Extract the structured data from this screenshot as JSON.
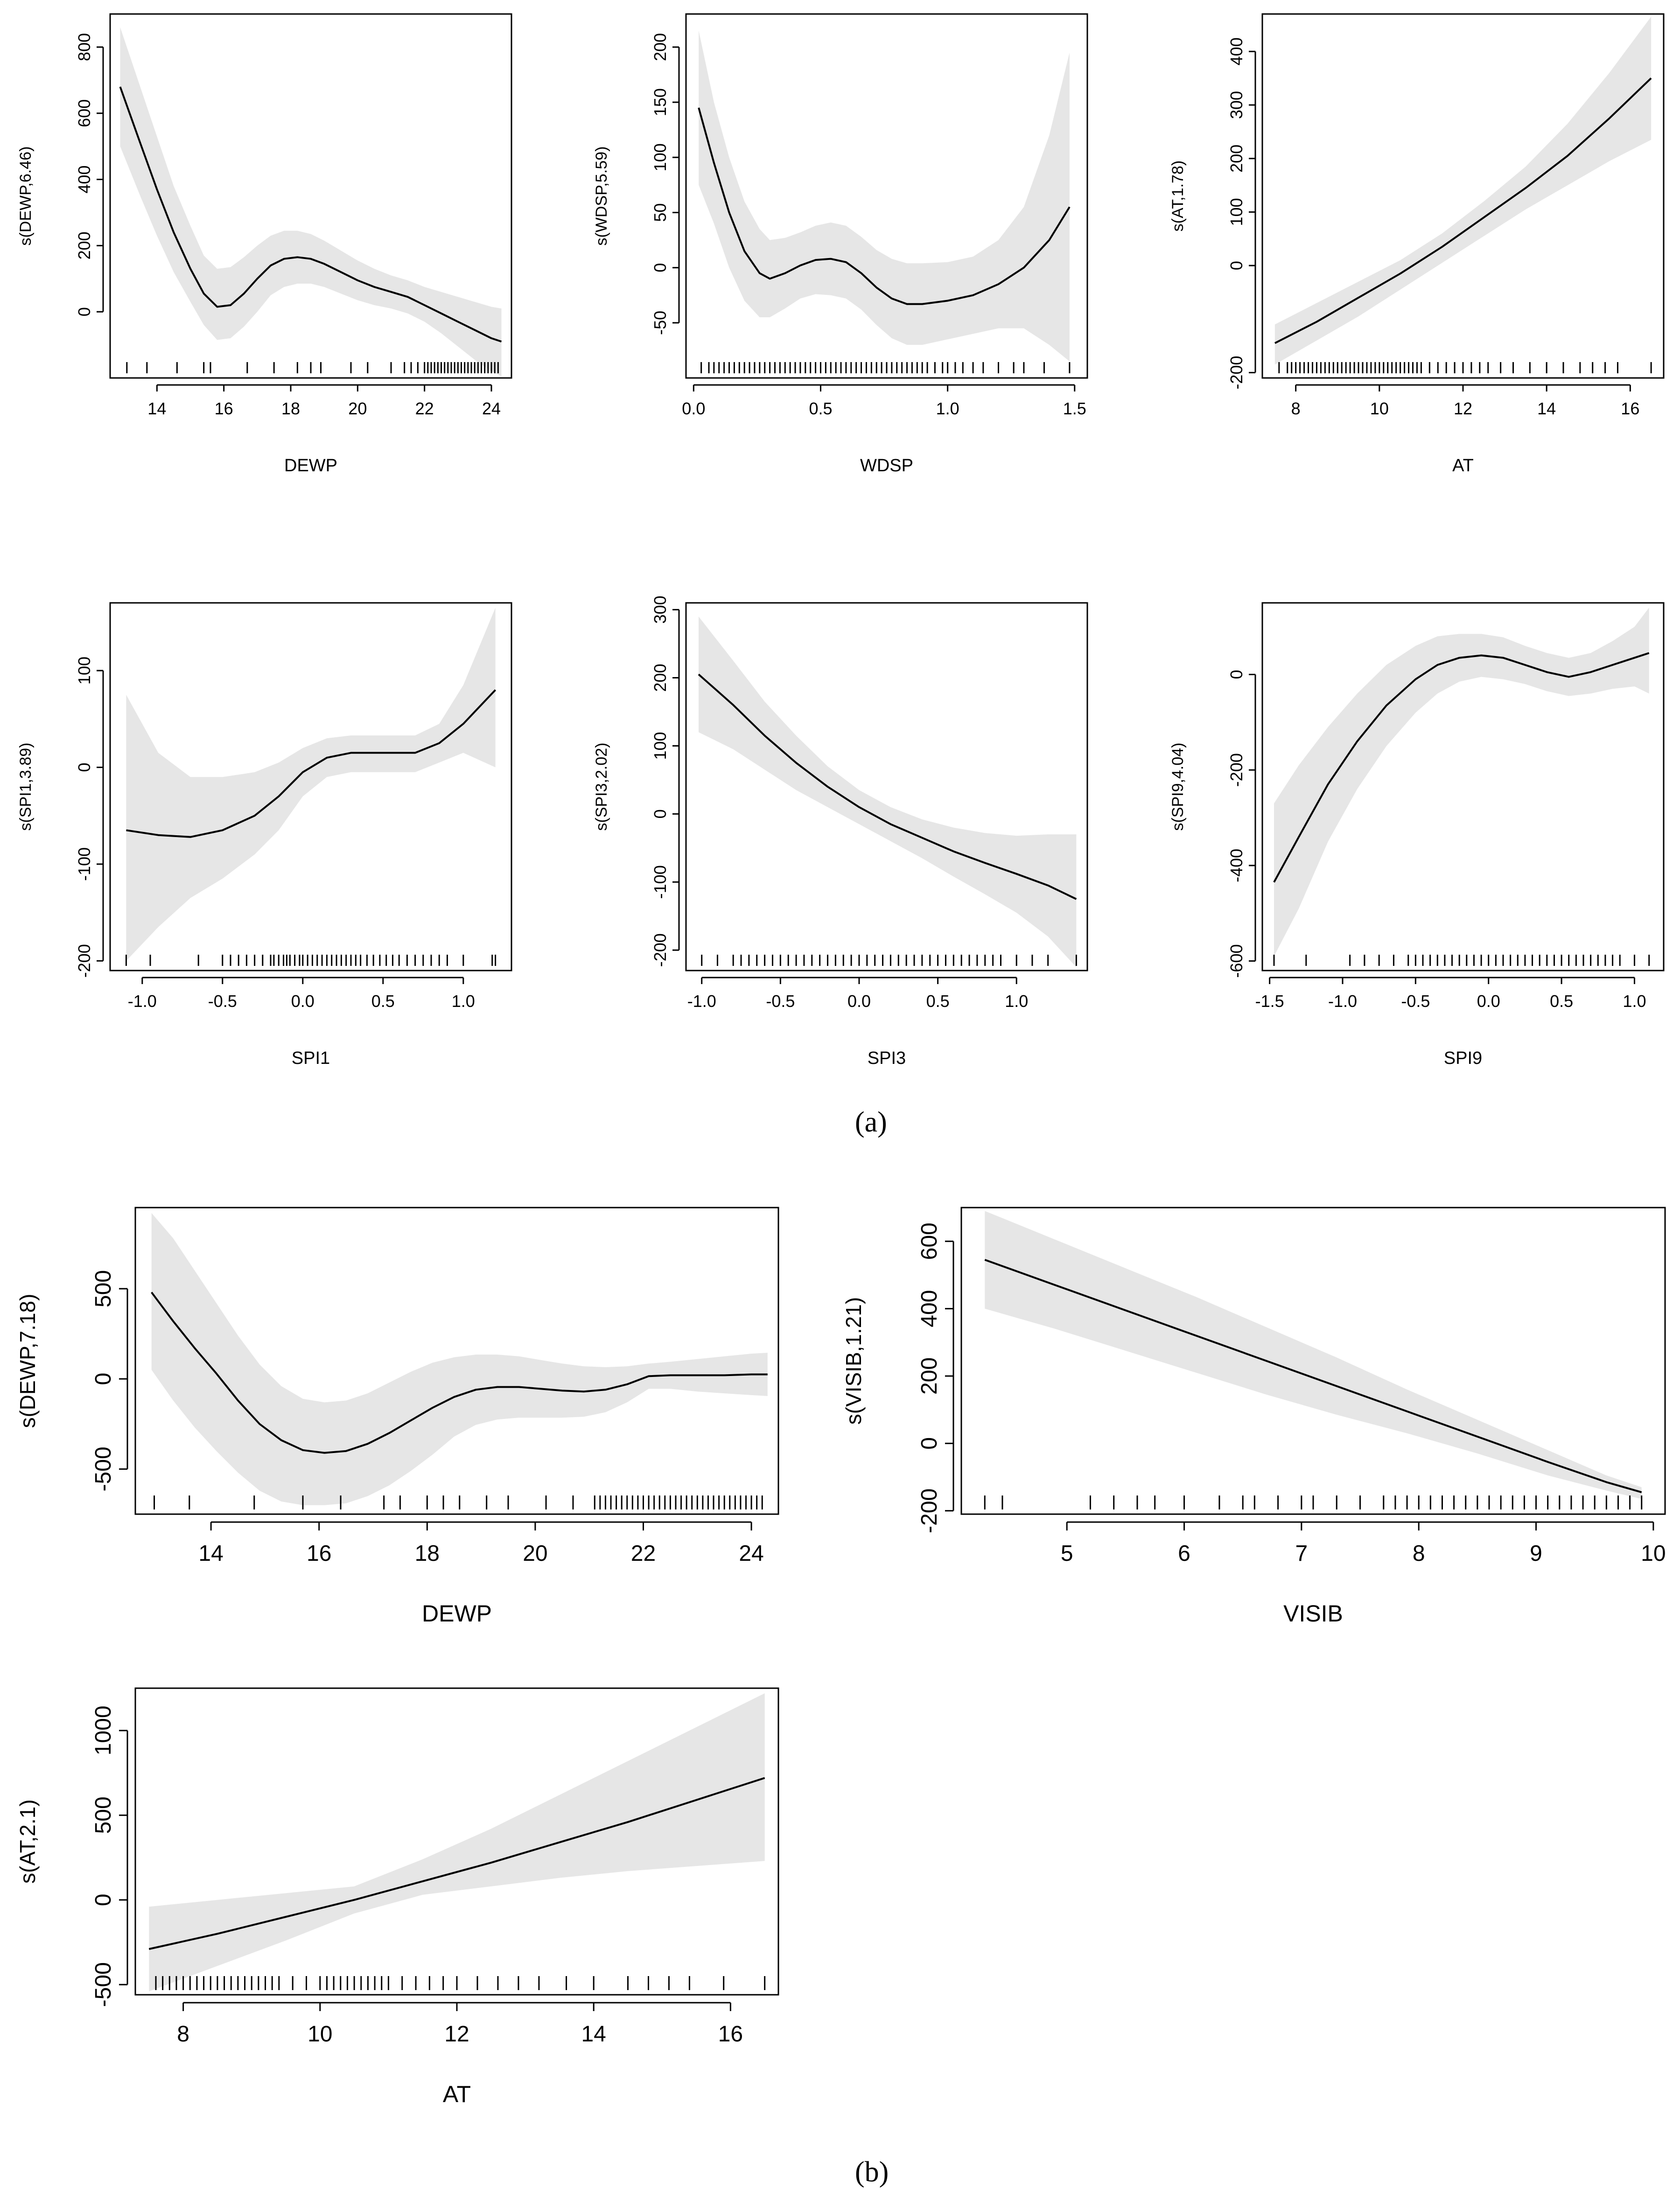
{
  "panel_labels": {
    "a": "(a)",
    "b": "(b)"
  },
  "chart_data": [
    {
      "type": "line",
      "section": "a",
      "xlabel": "DEWP",
      "ylabel": "s(DEWP,6.46)",
      "xlim": [
        12.6,
        24.6
      ],
      "ylim": [
        -200,
        900
      ],
      "xticks": [
        14,
        16,
        18,
        20,
        22,
        24
      ],
      "yticks": [
        0,
        200,
        400,
        600,
        800
      ],
      "x": [
        12.9,
        13.5,
        14.0,
        14.5,
        15.0,
        15.4,
        15.8,
        16.2,
        16.6,
        17.0,
        17.4,
        17.8,
        18.2,
        18.6,
        19.0,
        19.5,
        20.0,
        20.5,
        21.0,
        21.5,
        22.0,
        22.5,
        23.0,
        23.5,
        24.0,
        24.3
      ],
      "y": [
        680,
        510,
        370,
        240,
        130,
        55,
        15,
        20,
        55,
        100,
        140,
        160,
        165,
        160,
        145,
        120,
        95,
        75,
        60,
        45,
        20,
        -5,
        -30,
        -55,
        -80,
        -90
      ],
      "upper": [
        860,
        680,
        530,
        380,
        260,
        170,
        130,
        135,
        165,
        200,
        230,
        245,
        245,
        235,
        215,
        185,
        155,
        130,
        110,
        95,
        75,
        60,
        45,
        30,
        15,
        10
      ],
      "lower": [
        500,
        350,
        230,
        120,
        30,
        -40,
        -85,
        -80,
        -45,
        0,
        50,
        75,
        85,
        85,
        75,
        55,
        35,
        20,
        10,
        -5,
        -30,
        -65,
        -105,
        -145,
        -180,
        -195
      ],
      "rug": [
        13.1,
        13.7,
        14.6,
        15.4,
        15.6,
        16.7,
        17.5,
        18.2,
        18.6,
        18.9,
        19.8,
        20.3,
        21.0,
        21.4,
        21.6,
        21.8,
        22.0,
        22.1,
        22.2,
        22.3,
        22.4,
        22.5,
        22.6,
        22.7,
        22.8,
        22.9,
        23.0,
        23.1,
        23.2,
        23.3,
        23.4,
        23.5,
        23.6,
        23.7,
        23.8,
        23.9,
        24.0,
        24.1,
        24.2
      ]
    },
    {
      "type": "line",
      "section": "a",
      "xlabel": "WDSP",
      "ylabel": "s(WDSP,5.59)",
      "xlim": [
        -0.03,
        1.55
      ],
      "ylim": [
        -100,
        230
      ],
      "xticks": [
        0.0,
        0.5,
        1.0,
        1.5
      ],
      "yticks": [
        -50,
        0,
        50,
        100,
        150,
        200
      ],
      "x": [
        0.02,
        0.08,
        0.14,
        0.2,
        0.26,
        0.3,
        0.36,
        0.42,
        0.48,
        0.54,
        0.6,
        0.66,
        0.72,
        0.78,
        0.84,
        0.9,
        1.0,
        1.1,
        1.2,
        1.3,
        1.4,
        1.48
      ],
      "y": [
        145,
        95,
        50,
        15,
        -5,
        -10,
        -5,
        2,
        7,
        8,
        5,
        -5,
        -18,
        -28,
        -33,
        -33,
        -30,
        -25,
        -15,
        0,
        25,
        55
      ],
      "upper": [
        215,
        150,
        100,
        60,
        35,
        25,
        27,
        32,
        38,
        41,
        38,
        28,
        16,
        8,
        4,
        4,
        5,
        10,
        25,
        55,
        120,
        195
      ],
      "lower": [
        75,
        40,
        0,
        -30,
        -45,
        -45,
        -37,
        -28,
        -24,
        -25,
        -28,
        -38,
        -52,
        -64,
        -70,
        -70,
        -65,
        -60,
        -55,
        -55,
        -70,
        -85
      ],
      "rug": [
        0.03,
        0.06,
        0.08,
        0.1,
        0.12,
        0.14,
        0.16,
        0.18,
        0.2,
        0.22,
        0.24,
        0.26,
        0.28,
        0.3,
        0.32,
        0.34,
        0.36,
        0.38,
        0.4,
        0.42,
        0.44,
        0.46,
        0.48,
        0.5,
        0.52,
        0.54,
        0.56,
        0.58,
        0.6,
        0.62,
        0.64,
        0.66,
        0.68,
        0.7,
        0.72,
        0.74,
        0.76,
        0.78,
        0.8,
        0.82,
        0.84,
        0.86,
        0.88,
        0.9,
        0.92,
        0.95,
        0.98,
        1.0,
        1.03,
        1.06,
        1.1,
        1.14,
        1.2,
        1.26,
        1.3,
        1.38,
        1.48
      ]
    },
    {
      "type": "line",
      "section": "a",
      "xlabel": "AT",
      "ylabel": "s(AT,1.78)",
      "xlim": [
        7.2,
        16.8
      ],
      "ylim": [
        -210,
        470
      ],
      "xticks": [
        8,
        10,
        12,
        14,
        16
      ],
      "yticks": [
        -200,
        0,
        100,
        200,
        300,
        400
      ],
      "x": [
        7.5,
        8.5,
        9.5,
        10.5,
        11.5,
        12.5,
        13.5,
        14.5,
        15.5,
        16.5
      ],
      "y": [
        -145,
        -105,
        -60,
        -15,
        35,
        90,
        145,
        205,
        275,
        350
      ],
      "upper": [
        -110,
        -70,
        -30,
        10,
        60,
        120,
        185,
        265,
        360,
        465
      ],
      "lower": [
        -185,
        -140,
        -95,
        -45,
        5,
        55,
        105,
        150,
        195,
        235
      ],
      "rug": [
        7.6,
        7.8,
        7.9,
        8.0,
        8.1,
        8.2,
        8.3,
        8.4,
        8.5,
        8.6,
        8.7,
        8.8,
        8.9,
        9.0,
        9.1,
        9.2,
        9.3,
        9.4,
        9.5,
        9.6,
        9.7,
        9.8,
        9.9,
        10.0,
        10.1,
        10.2,
        10.3,
        10.4,
        10.5,
        10.6,
        10.7,
        10.8,
        10.9,
        11.0,
        11.2,
        11.4,
        11.6,
        11.8,
        12.0,
        12.2,
        12.4,
        12.6,
        12.9,
        13.2,
        13.6,
        14.0,
        14.4,
        14.8,
        15.1,
        15.4,
        15.7,
        16.5
      ]
    },
    {
      "type": "line",
      "section": "a",
      "xlabel": "SPI1",
      "ylabel": "s(SPI1,3.89)",
      "xlim": [
        -1.2,
        1.3
      ],
      "ylim": [
        -210,
        170
      ],
      "xticks": [
        -1.0,
        -0.5,
        0.0,
        0.5,
        1.0
      ],
      "yticks": [
        -200,
        -100,
        0,
        100
      ],
      "x": [
        -1.1,
        -0.9,
        -0.7,
        -0.5,
        -0.3,
        -0.15,
        0.0,
        0.15,
        0.3,
        0.5,
        0.7,
        0.85,
        1.0,
        1.2
      ],
      "y": [
        -65,
        -70,
        -72,
        -65,
        -50,
        -30,
        -5,
        10,
        15,
        15,
        15,
        25,
        45,
        80
      ],
      "upper": [
        75,
        15,
        -10,
        -10,
        -5,
        5,
        20,
        30,
        33,
        33,
        33,
        45,
        85,
        165
      ],
      "lower": [
        -200,
        -165,
        -135,
        -115,
        -90,
        -65,
        -30,
        -10,
        -5,
        -5,
        -5,
        5,
        15,
        0
      ],
      "rug": [
        -1.1,
        -0.95,
        -0.65,
        -0.5,
        -0.45,
        -0.4,
        -0.35,
        -0.3,
        -0.25,
        -0.2,
        -0.18,
        -0.15,
        -0.12,
        -0.1,
        -0.08,
        -0.05,
        -0.02,
        0.0,
        0.03,
        0.06,
        0.09,
        0.12,
        0.15,
        0.18,
        0.21,
        0.24,
        0.27,
        0.3,
        0.33,
        0.36,
        0.4,
        0.44,
        0.48,
        0.52,
        0.56,
        0.6,
        0.65,
        0.7,
        0.75,
        0.8,
        0.85,
        0.9,
        1.0,
        1.18,
        1.2
      ]
    },
    {
      "type": "line",
      "section": "a",
      "xlabel": "SPI3",
      "ylabel": "s(SPI3,2.02)",
      "xlim": [
        -1.1,
        1.45
      ],
      "ylim": [
        -230,
        310
      ],
      "xticks": [
        -1.0,
        -0.5,
        0.0,
        0.5,
        1.0
      ],
      "yticks": [
        -200,
        -100,
        0,
        100,
        200,
        300
      ],
      "x": [
        -1.02,
        -0.8,
        -0.6,
        -0.4,
        -0.2,
        0.0,
        0.2,
        0.4,
        0.6,
        0.8,
        1.0,
        1.2,
        1.38
      ],
      "y": [
        205,
        160,
        115,
        75,
        40,
        10,
        -15,
        -35,
        -55,
        -72,
        -88,
        -105,
        -125
      ],
      "upper": [
        290,
        225,
        165,
        115,
        70,
        35,
        10,
        -8,
        -20,
        -28,
        -32,
        -30,
        -30
      ],
      "lower": [
        120,
        95,
        65,
        35,
        10,
        -15,
        -40,
        -65,
        -92,
        -118,
        -145,
        -180,
        -225
      ],
      "rug": [
        -1.0,
        -0.9,
        -0.8,
        -0.75,
        -0.7,
        -0.65,
        -0.6,
        -0.55,
        -0.5,
        -0.45,
        -0.4,
        -0.35,
        -0.3,
        -0.25,
        -0.2,
        -0.15,
        -0.1,
        -0.05,
        0.0,
        0.05,
        0.1,
        0.15,
        0.2,
        0.25,
        0.3,
        0.35,
        0.4,
        0.45,
        0.5,
        0.55,
        0.6,
        0.65,
        0.7,
        0.75,
        0.8,
        0.85,
        0.9,
        1.0,
        1.1,
        1.2,
        1.38
      ]
    },
    {
      "type": "line",
      "section": "a",
      "xlabel": "SPI9",
      "ylabel": "s(SPI9,4.04)",
      "xlim": [
        -1.55,
        1.2
      ],
      "ylim": [
        -620,
        150
      ],
      "xticks": [
        -1.5,
        -1.0,
        -0.5,
        0.0,
        0.5,
        1.0
      ],
      "yticks": [
        -600,
        -400,
        -200,
        0
      ],
      "x": [
        -1.47,
        -1.3,
        -1.1,
        -0.9,
        -0.7,
        -0.5,
        -0.35,
        -0.2,
        -0.05,
        0.1,
        0.25,
        0.4,
        0.55,
        0.7,
        0.85,
        1.0,
        1.1
      ],
      "y": [
        -435,
        -340,
        -230,
        -140,
        -65,
        -10,
        20,
        35,
        40,
        35,
        20,
        5,
        -5,
        5,
        20,
        35,
        45
      ],
      "upper": [
        -270,
        -190,
        -110,
        -40,
        20,
        60,
        80,
        85,
        85,
        78,
        60,
        45,
        35,
        45,
        70,
        100,
        140
      ],
      "lower": [
        -590,
        -490,
        -350,
        -240,
        -150,
        -80,
        -40,
        -15,
        -5,
        -10,
        -20,
        -35,
        -45,
        -40,
        -30,
        -25,
        -40
      ],
      "rug": [
        -1.47,
        -1.25,
        -0.95,
        -0.85,
        -0.75,
        -0.65,
        -0.55,
        -0.5,
        -0.45,
        -0.4,
        -0.35,
        -0.3,
        -0.25,
        -0.2,
        -0.15,
        -0.1,
        -0.05,
        0.0,
        0.05,
        0.1,
        0.15,
        0.2,
        0.25,
        0.3,
        0.35,
        0.4,
        0.45,
        0.5,
        0.55,
        0.6,
        0.65,
        0.7,
        0.75,
        0.8,
        0.85,
        0.9,
        1.0,
        1.1
      ]
    },
    {
      "type": "line",
      "section": "b",
      "xlabel": "DEWP",
      "ylabel": "s(DEWP,7.18)",
      "xlim": [
        12.6,
        24.5
      ],
      "ylim": [
        -750,
        950
      ],
      "xticks": [
        14,
        16,
        18,
        20,
        22,
        24
      ],
      "yticks": [
        -500,
        0,
        500
      ],
      "x": [
        12.9,
        13.3,
        13.7,
        14.1,
        14.5,
        14.9,
        15.3,
        15.7,
        16.1,
        16.5,
        16.9,
        17.3,
        17.7,
        18.1,
        18.5,
        18.9,
        19.3,
        19.7,
        20.1,
        20.5,
        20.9,
        21.3,
        21.7,
        22.1,
        22.5,
        23.0,
        23.5,
        24.0,
        24.3
      ],
      "y": [
        480,
        320,
        170,
        30,
        -120,
        -250,
        -340,
        -395,
        -410,
        -400,
        -360,
        -300,
        -230,
        -160,
        -100,
        -60,
        -45,
        -45,
        -55,
        -65,
        -70,
        -60,
        -30,
        15,
        20,
        20,
        20,
        25,
        25
      ],
      "upper": [
        920,
        780,
        600,
        420,
        240,
        80,
        -40,
        -110,
        -130,
        -120,
        -80,
        -20,
        40,
        90,
        120,
        135,
        135,
        125,
        105,
        85,
        70,
        65,
        70,
        85,
        95,
        110,
        125,
        140,
        145
      ],
      "lower": [
        50,
        -120,
        -270,
        -400,
        -520,
        -620,
        -680,
        -700,
        -700,
        -690,
        -650,
        -590,
        -510,
        -420,
        -320,
        -255,
        -225,
        -215,
        -215,
        -215,
        -210,
        -185,
        -130,
        -55,
        -55,
        -70,
        -80,
        -90,
        -95
      ],
      "rug": [
        12.95,
        13.6,
        14.8,
        15.7,
        16.4,
        17.2,
        17.5,
        18.0,
        18.3,
        18.6,
        19.1,
        19.5,
        20.2,
        20.7,
        21.1,
        21.2,
        21.3,
        21.4,
        21.5,
        21.6,
        21.7,
        21.8,
        21.9,
        22.0,
        22.1,
        22.2,
        22.3,
        22.4,
        22.5,
        22.6,
        22.7,
        22.8,
        22.9,
        23.0,
        23.1,
        23.2,
        23.3,
        23.4,
        23.5,
        23.6,
        23.7,
        23.8,
        23.9,
        24.0,
        24.1,
        24.2
      ]
    },
    {
      "type": "line",
      "section": "b",
      "xlabel": "VISIB",
      "ylabel": "s(VISIB,1.21)",
      "xlim": [
        4.1,
        10.1
      ],
      "ylim": [
        -210,
        700
      ],
      "xticks": [
        5,
        6,
        7,
        8,
        9,
        10
      ],
      "yticks": [
        -200,
        0,
        200,
        400,
        600
      ],
      "x": [
        4.3,
        4.9,
        5.5,
        6.1,
        6.7,
        7.3,
        7.9,
        8.5,
        9.1,
        9.6,
        9.9
      ],
      "y": [
        545,
        470,
        395,
        320,
        245,
        170,
        95,
        20,
        -55,
        -115,
        -145
      ],
      "upper": [
        690,
        605,
        520,
        435,
        345,
        255,
        160,
        70,
        -20,
        -95,
        -130
      ],
      "lower": [
        400,
        340,
        275,
        210,
        145,
        85,
        30,
        -30,
        -95,
        -140,
        -165
      ],
      "rug": [
        4.3,
        4.45,
        5.2,
        5.4,
        5.6,
        5.75,
        6.0,
        6.3,
        6.5,
        6.6,
        6.8,
        7.0,
        7.1,
        7.3,
        7.5,
        7.7,
        7.8,
        7.9,
        8.0,
        8.1,
        8.2,
        8.3,
        8.4,
        8.5,
        8.6,
        8.7,
        8.8,
        8.9,
        9.0,
        9.1,
        9.2,
        9.3,
        9.4,
        9.5,
        9.6,
        9.7,
        9.8,
        9.9
      ]
    },
    {
      "type": "line",
      "section": "b",
      "xlabel": "AT",
      "ylabel": "s(AT,2.1)",
      "xlim": [
        7.3,
        16.7
      ],
      "ylim": [
        -560,
        1250
      ],
      "xticks": [
        8,
        10,
        12,
        14,
        16
      ],
      "yticks": [
        -500,
        0,
        500,
        1000
      ],
      "x": [
        7.5,
        8.5,
        9.5,
        10.5,
        11.5,
        12.5,
        13.5,
        14.5,
        15.5,
        16.5
      ],
      "y": [
        -290,
        -200,
        -100,
        0,
        110,
        220,
        340,
        460,
        590,
        720
      ],
      "upper": [
        -40,
        0,
        40,
        80,
        240,
        420,
        620,
        820,
        1020,
        1220
      ],
      "lower": [
        -540,
        -390,
        -240,
        -80,
        30,
        80,
        130,
        170,
        200,
        230
      ],
      "rug": [
        7.6,
        7.7,
        7.8,
        7.9,
        8.0,
        8.1,
        8.2,
        8.3,
        8.4,
        8.5,
        8.6,
        8.7,
        8.8,
        8.9,
        9.0,
        9.1,
        9.2,
        9.3,
        9.4,
        9.6,
        9.8,
        10.0,
        10.1,
        10.2,
        10.3,
        10.4,
        10.5,
        10.6,
        10.7,
        10.8,
        10.9,
        11.0,
        11.2,
        11.4,
        11.6,
        11.8,
        12.0,
        12.3,
        12.6,
        12.9,
        13.2,
        13.6,
        14.0,
        14.5,
        14.8,
        15.1,
        15.4,
        15.9,
        16.5
      ]
    }
  ]
}
